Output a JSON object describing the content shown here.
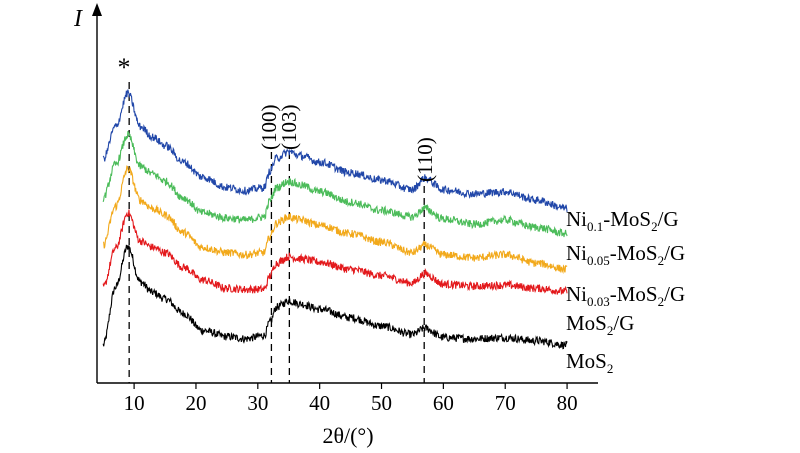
{
  "chart_data": {
    "type": "line",
    "title": "",
    "xlabel": "2θ/(°)",
    "ylabel": "I",
    "xlim": [
      4,
      85
    ],
    "xticks": [
      10,
      20,
      30,
      40,
      50,
      60,
      70,
      80
    ],
    "grid": false,
    "legend": "labels at right end of each trace",
    "annotations": [
      {
        "text": "*",
        "x": 9.2
      },
      {
        "text": "(100)",
        "x": 32.2
      },
      {
        "text": "(103)",
        "x": 35.1
      },
      {
        "text": "(110)",
        "x": 56.9
      }
    ],
    "series": [
      {
        "name": "MoS2",
        "color": "#000000",
        "x": [
          5,
          7,
          9,
          11,
          13,
          15,
          18,
          21,
          25,
          28,
          31,
          32,
          33,
          35,
          37,
          40,
          45,
          50,
          55,
          57,
          60,
          65,
          70,
          75,
          80
        ],
        "y": [
          0.0,
          0.55,
          0.94,
          0.6,
          0.5,
          0.44,
          0.3,
          0.14,
          0.08,
          0.06,
          0.09,
          0.22,
          0.36,
          0.42,
          0.39,
          0.34,
          0.26,
          0.18,
          0.1,
          0.16,
          0.07,
          0.06,
          0.07,
          0.04,
          0.0
        ]
      },
      {
        "name": "MoS2/G",
        "color": "#e3191c",
        "x": [
          5,
          7,
          9,
          11,
          13,
          15,
          18,
          21,
          25,
          28,
          31,
          32,
          33,
          35,
          37,
          40,
          45,
          50,
          55,
          57,
          60,
          65,
          70,
          75,
          80
        ],
        "y": [
          0.55,
          0.92,
          1.26,
          0.99,
          0.93,
          0.88,
          0.74,
          0.62,
          0.54,
          0.53,
          0.53,
          0.66,
          0.78,
          0.84,
          0.82,
          0.79,
          0.72,
          0.66,
          0.59,
          0.68,
          0.58,
          0.56,
          0.57,
          0.54,
          0.51
        ]
      },
      {
        "name": "Ni0.03-MoS2/G",
        "color": "#f2a91b",
        "x": [
          5,
          7,
          9,
          11,
          13,
          15,
          18,
          21,
          25,
          28,
          31,
          32,
          33,
          35,
          37,
          40,
          45,
          50,
          55,
          57,
          60,
          65,
          70,
          75,
          80
        ],
        "y": [
          0.95,
          1.32,
          1.68,
          1.38,
          1.3,
          1.24,
          1.07,
          0.93,
          0.88,
          0.86,
          0.88,
          1.04,
          1.16,
          1.22,
          1.19,
          1.14,
          1.06,
          0.98,
          0.88,
          0.95,
          0.86,
          0.83,
          0.86,
          0.78,
          0.72
        ]
      },
      {
        "name": "Ni0.05-MoS2/G",
        "color": "#4cbc5a",
        "x": [
          5,
          7,
          9,
          11,
          13,
          15,
          18,
          21,
          25,
          28,
          31,
          32,
          33,
          35,
          37,
          40,
          45,
          50,
          55,
          57,
          60,
          65,
          70,
          75,
          80
        ],
        "y": [
          1.4,
          1.72,
          2.0,
          1.7,
          1.63,
          1.56,
          1.4,
          1.26,
          1.21,
          1.19,
          1.22,
          1.38,
          1.5,
          1.56,
          1.52,
          1.46,
          1.36,
          1.28,
          1.22,
          1.3,
          1.2,
          1.15,
          1.19,
          1.12,
          1.06
        ]
      },
      {
        "name": "Ni0.1-MoS2/G",
        "color": "#2147a9",
        "x": [
          5,
          7,
          9,
          11,
          13,
          15,
          18,
          21,
          25,
          28,
          31,
          32,
          33,
          35,
          37,
          40,
          45,
          50,
          55,
          57,
          60,
          65,
          70,
          75,
          80
        ],
        "y": [
          1.77,
          2.08,
          2.4,
          2.08,
          1.98,
          1.9,
          1.74,
          1.6,
          1.5,
          1.47,
          1.5,
          1.66,
          1.78,
          1.84,
          1.8,
          1.74,
          1.64,
          1.57,
          1.48,
          1.59,
          1.48,
          1.44,
          1.46,
          1.38,
          1.3
        ]
      }
    ]
  },
  "labels": {
    "s0": {
      "base": "MoS",
      "sub": "2",
      "rest": ""
    },
    "s1": {
      "base": "MoS",
      "sub": "2",
      "rest": "/G"
    },
    "s2": {
      "pre": "Ni",
      "sub1": "0.03",
      "mid": "-MoS",
      "sub2": "2",
      "rest": "/G"
    },
    "s3": {
      "pre": "Ni",
      "sub1": "0.05",
      "mid": "-MoS",
      "sub2": "2",
      "rest": "/G"
    },
    "s4": {
      "pre": "Ni",
      "sub1": "0.1",
      "mid": "-MoS",
      "sub2": "2",
      "rest": "/G"
    }
  }
}
